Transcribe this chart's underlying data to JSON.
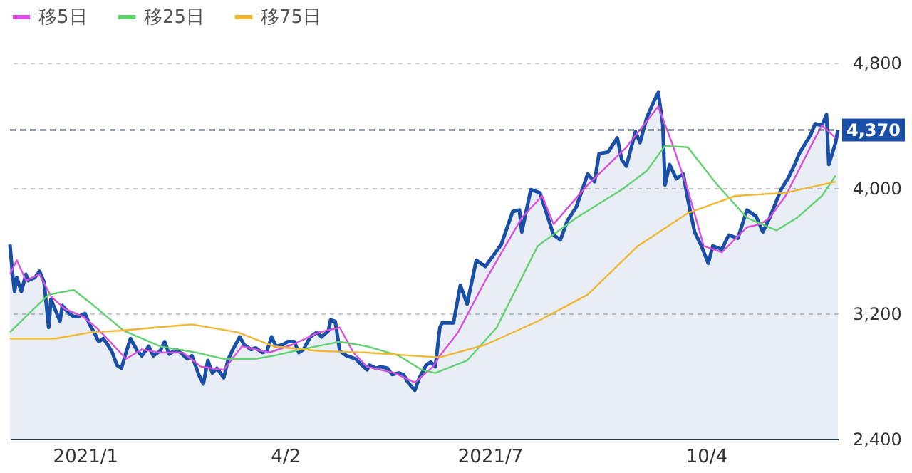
{
  "chart_data": {
    "type": "line",
    "legend": "top left",
    "grid": "y",
    "ylim": [
      2400,
      4800
    ],
    "yticks": [
      {
        "value": 2400,
        "label": "2,400"
      },
      {
        "value": 3200,
        "label": "3,200"
      },
      {
        "value": 4000,
        "label": "4,000"
      },
      {
        "value": 4800,
        "label": "4,800"
      }
    ],
    "xlim": [
      "2020-12-02",
      "2021-12-01"
    ],
    "xticks": [
      {
        "value": "2021-01-04",
        "label": "2021/1"
      },
      {
        "value": "2021-04-02",
        "label": "4/2"
      },
      {
        "value": "2021-07-01",
        "label": "2021/7"
      },
      {
        "value": "2021-10-04",
        "label": "10/4"
      }
    ],
    "ref_lines": [
      {
        "axis": "y",
        "value": 4370,
        "label": "4,370",
        "color": "#33475b",
        "line_style": "dashed"
      }
    ],
    "series": [
      {
        "type": "area",
        "color": "#1a4fa8",
        "x": [
          "2020-12-02",
          "2020-12-03",
          "2020-12-04",
          "2020-12-05",
          "2020-12-07",
          "2020-12-09",
          "2020-12-10",
          "2020-12-13",
          "2020-12-15",
          "2020-12-17",
          "2020-12-19",
          "2020-12-20",
          "2020-12-22",
          "2020-12-24",
          "2020-12-25",
          "2020-12-28",
          "2020-12-30",
          "2021-01-01",
          "2021-01-04",
          "2021-01-06",
          "2021-01-08",
          "2021-01-10",
          "2021-01-12",
          "2021-01-14",
          "2021-01-16",
          "2021-01-18",
          "2021-01-20",
          "2021-01-22",
          "2021-01-24",
          "2021-01-27",
          "2021-01-29",
          "2021-02-01",
          "2021-02-03",
          "2021-02-06",
          "2021-02-08",
          "2021-02-10",
          "2021-02-13",
          "2021-02-15",
          "2021-02-18",
          "2021-02-20",
          "2021-02-23",
          "2021-02-25",
          "2021-02-27",
          "2021-03-01",
          "2021-03-03",
          "2021-03-06",
          "2021-03-08",
          "2021-03-10",
          "2021-03-13",
          "2021-03-15",
          "2021-03-18",
          "2021-03-20",
          "2021-03-23",
          "2021-03-25",
          "2021-03-27",
          "2021-03-29",
          "2021-04-01",
          "2021-04-03",
          "2021-04-06",
          "2021-04-08",
          "2021-04-10",
          "2021-04-13",
          "2021-04-16",
          "2021-04-18",
          "2021-04-21",
          "2021-04-22",
          "2021-04-24",
          "2021-04-26",
          "2021-04-29",
          "2021-05-01",
          "2021-05-03",
          "2021-05-05",
          "2021-05-08",
          "2021-05-09",
          "2021-05-12",
          "2021-05-14",
          "2021-05-17",
          "2021-05-19",
          "2021-05-22",
          "2021-05-24",
          "2021-05-26",
          "2021-05-29",
          "2021-05-31",
          "2021-06-03",
          "2021-06-05",
          "2021-06-07",
          "2021-06-09",
          "2021-06-10",
          "2021-06-15",
          "2021-06-18",
          "2021-06-21",
          "2021-06-25",
          "2021-06-29",
          "2021-07-06",
          "2021-07-11",
          "2021-07-14",
          "2021-07-15",
          "2021-07-19",
          "2021-07-23",
          "2021-07-29",
          "2021-08-01",
          "2021-08-04",
          "2021-08-08",
          "2021-08-13",
          "2021-08-16",
          "2021-08-18",
          "2021-08-22",
          "2021-08-26",
          "2021-08-28",
          "2021-08-30",
          "2021-09-03",
          "2021-09-05",
          "2021-09-08",
          "2021-09-11",
          "2021-09-13",
          "2021-09-15",
          "2021-09-16",
          "2021-09-18",
          "2021-09-21",
          "2021-09-24",
          "2021-09-26",
          "2021-09-29",
          "2021-10-02",
          "2021-10-05",
          "2021-10-07",
          "2021-10-11",
          "2021-10-14",
          "2021-10-18",
          "2021-10-22",
          "2021-10-26",
          "2021-10-29",
          "2021-11-01",
          "2021-11-06",
          "2021-11-09",
          "2021-11-12",
          "2021-11-14",
          "2021-11-19",
          "2021-11-21",
          "2021-11-24",
          "2021-11-26",
          "2021-11-27",
          "2021-11-30",
          "2021-12-01"
        ],
        "values": [
          3640,
          3470,
          3340,
          3430,
          3340,
          3450,
          3410,
          3430,
          3470,
          3400,
          3110,
          3290,
          3220,
          3150,
          3250,
          3200,
          3180,
          3180,
          3200,
          3130,
          3080,
          3020,
          3040,
          3000,
          2950,
          2870,
          2850,
          2950,
          3040,
          2960,
          2930,
          2990,
          2930,
          2960,
          3020,
          2940,
          2970,
          2950,
          2910,
          2930,
          2810,
          2750,
          2900,
          2820,
          2850,
          2790,
          2910,
          2970,
          3050,
          3000,
          2970,
          2980,
          2950,
          2960,
          3050,
          2990,
          3000,
          3020,
          3020,
          2950,
          2970,
          3050,
          3080,
          3050,
          3090,
          3160,
          3150,
          2960,
          2930,
          2920,
          2910,
          2880,
          2840,
          2870,
          2850,
          2860,
          2850,
          2810,
          2820,
          2810,
          2760,
          2710,
          2790,
          2870,
          2890,
          2860,
          3110,
          3140,
          3140,
          3380,
          3260,
          3540,
          3500,
          3640,
          3850,
          3860,
          3720,
          3990,
          3970,
          3700,
          3670,
          3790,
          3880,
          4090,
          4040,
          4220,
          4230,
          4320,
          4180,
          4140,
          4360,
          4290,
          4450,
          4550,
          4610,
          4410,
          4020,
          4150,
          4060,
          4090,
          3930,
          3720,
          3630,
          3520,
          3630,
          3610,
          3700,
          3680,
          3860,
          3820,
          3720,
          3810,
          3990,
          4060,
          4150,
          4220,
          4340,
          4410,
          4400,
          4470,
          4150,
          4290,
          4370
        ]
      },
      {
        "type": "line",
        "name": "移5日",
        "color": "#d94fe0",
        "x": [
          "2020-12-02",
          "2020-12-05",
          "2020-12-09",
          "2020-12-15",
          "2020-12-20",
          "2020-12-26",
          "2021-01-03",
          "2021-01-09",
          "2021-01-15",
          "2021-01-22",
          "2021-01-29",
          "2021-02-06",
          "2021-02-16",
          "2021-02-24",
          "2021-03-06",
          "2021-03-14",
          "2021-03-26",
          "2021-04-05",
          "2021-04-17",
          "2021-04-26",
          "2021-05-02",
          "2021-05-08",
          "2021-05-20",
          "2021-05-29",
          "2021-06-06",
          "2021-06-09",
          "2021-06-17",
          "2021-06-29",
          "2021-07-15",
          "2021-07-24",
          "2021-07-29",
          "2021-08-13",
          "2021-08-30",
          "2021-09-13",
          "2021-09-19",
          "2021-09-26",
          "2021-10-03",
          "2021-10-11",
          "2021-10-22",
          "2021-10-28",
          "2021-11-01",
          "2021-11-08",
          "2021-11-21",
          "2021-11-24",
          "2021-11-30"
        ],
        "values": [
          3450,
          3540,
          3410,
          3450,
          3310,
          3230,
          3180,
          3110,
          3020,
          2910,
          2970,
          2950,
          2950,
          2860,
          2840,
          2990,
          2950,
          3000,
          3080,
          3110,
          2950,
          2860,
          2820,
          2760,
          2860,
          2930,
          3080,
          3410,
          3810,
          3950,
          3770,
          4020,
          4260,
          4520,
          4290,
          3990,
          3630,
          3590,
          3750,
          3770,
          3810,
          3950,
          4320,
          4400,
          4320
        ]
      },
      {
        "type": "line",
        "name": "移25日",
        "color": "#62d270",
        "x": [
          "2020-12-02",
          "2020-12-09",
          "2020-12-19",
          "2020-12-30",
          "2021-01-07",
          "2021-01-21",
          "2021-02-06",
          "2021-02-22",
          "2021-03-06",
          "2021-03-20",
          "2021-03-28",
          "2021-04-09",
          "2021-04-26",
          "2021-05-08",
          "2021-05-22",
          "2021-06-01",
          "2021-06-07",
          "2021-06-21",
          "2021-07-04",
          "2021-07-22",
          "2021-08-08",
          "2021-08-28",
          "2021-09-08",
          "2021-09-16",
          "2021-09-26",
          "2021-10-09",
          "2021-10-22",
          "2021-11-04",
          "2021-11-13",
          "2021-11-24",
          "2021-11-30"
        ],
        "values": [
          3080,
          3180,
          3320,
          3350,
          3260,
          3090,
          2990,
          2950,
          2910,
          2910,
          2930,
          2970,
          3020,
          2990,
          2930,
          2840,
          2820,
          2900,
          3110,
          3630,
          3810,
          3990,
          4110,
          4270,
          4260,
          4020,
          3810,
          3730,
          3810,
          3950,
          4080
        ]
      },
      {
        "type": "line",
        "name": "移75日",
        "color": "#f0b830",
        "x": [
          "2020-12-02",
          "2020-12-22",
          "2021-01-07",
          "2021-01-19",
          "2021-02-20",
          "2021-03-12",
          "2021-03-28",
          "2021-04-17",
          "2021-05-08",
          "2021-05-28",
          "2021-06-09",
          "2021-06-29",
          "2021-07-22",
          "2021-08-13",
          "2021-09-04",
          "2021-09-26",
          "2021-10-17",
          "2021-11-08",
          "2021-11-30"
        ],
        "values": [
          3040,
          3040,
          3080,
          3090,
          3130,
          3080,
          2990,
          2960,
          2950,
          2930,
          2920,
          3000,
          3150,
          3320,
          3630,
          3840,
          3950,
          3970,
          4040
        ]
      }
    ]
  }
}
